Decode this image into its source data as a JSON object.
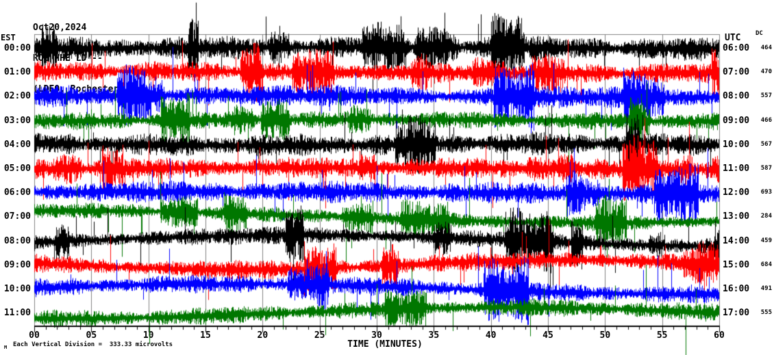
{
  "header": {
    "date": "Oct20,2024",
    "station": "ROC HHE LD --",
    "network": "(LDEO, Rochester)"
  },
  "chart_data": {
    "type": "line",
    "subtype": "seismogram-helicorder",
    "title": "ROC HHE LD -- (LDEO, Rochester) Oct20,2024",
    "xlabel": "TIME (MINUTES)",
    "x_range": [
      0,
      60
    ],
    "x_major_tick_step": 5,
    "x_minor_tick_step": 1,
    "x_tick_labels": [
      "00",
      "05",
      "10",
      "15",
      "20",
      "25",
      "30",
      "35",
      "40",
      "45",
      "50",
      "55",
      "60"
    ],
    "left_axis_title": "EST",
    "right_axis_title": "UTC",
    "dc_column_title": "DC",
    "grid": true,
    "grid_color": "#808080",
    "axis_color": "#000000",
    "amplitude_units": "microvolts",
    "vertical_division_microvolts": 333.33,
    "footnote": "Each Vertical Division =  333.33 microvolts",
    "corner_mark": "M",
    "trace_colors": {
      "black": "#000000",
      "red": "#ff0000",
      "blue": "#0000ff",
      "green": "#007700"
    },
    "rows": [
      {
        "est": "00:00",
        "utc": "06:00",
        "dc": "464",
        "color": "#000000"
      },
      {
        "est": "01:00",
        "utc": "07:00",
        "dc": "470",
        "color": "#ff0000"
      },
      {
        "est": "02:00",
        "utc": "08:00",
        "dc": "557",
        "color": "#0000ff"
      },
      {
        "est": "03:00",
        "utc": "09:00",
        "dc": "466",
        "color": "#007700"
      },
      {
        "est": "04:00",
        "utc": "10:00",
        "dc": "567",
        "color": "#000000"
      },
      {
        "est": "05:00",
        "utc": "11:00",
        "dc": "587",
        "color": "#ff0000"
      },
      {
        "est": "06:00",
        "utc": "12:00",
        "dc": "693",
        "color": "#0000ff"
      },
      {
        "est": "07:00",
        "utc": "13:00",
        "dc": "284",
        "color": "#007700"
      },
      {
        "est": "08:00",
        "utc": "14:00",
        "dc": "459",
        "color": "#000000"
      },
      {
        "est": "09:00",
        "utc": "15:00",
        "dc": "684",
        "color": "#ff0000"
      },
      {
        "est": "10:00",
        "utc": "16:00",
        "dc": "491",
        "color": "#0000ff"
      },
      {
        "est": "11:00",
        "utc": "17:00",
        "dc": "555",
        "color": "#007700"
      }
    ]
  }
}
